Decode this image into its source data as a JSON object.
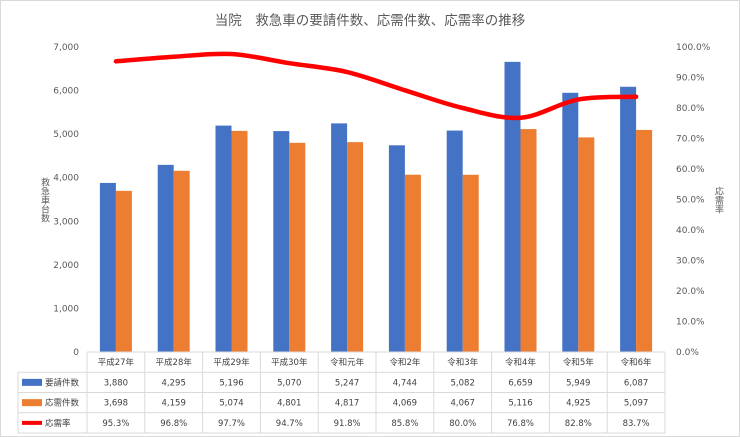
{
  "chart_data": {
    "type": "bar",
    "title": "当院　救急車の要請件数、応需件数、応需率の推移",
    "ylabel": "救急車台数",
    "y2label": "応需率",
    "categories": [
      "平成27年",
      "平成28年",
      "平成29年",
      "平成30年",
      "令和元年",
      "令和2年",
      "令和3年",
      "令和4年",
      "令和5年",
      "令和6年"
    ],
    "ylim": [
      0,
      7000
    ],
    "y2lim": [
      0,
      100
    ],
    "yticks": [
      "0",
      "1,000",
      "2,000",
      "3,000",
      "4,000",
      "5,000",
      "6,000",
      "7,000"
    ],
    "y2ticks": [
      "0.0%",
      "10.0%",
      "20.0%",
      "30.0%",
      "40.0%",
      "50.0%",
      "60.0%",
      "70.0%",
      "80.0%",
      "90.0%",
      "100.0%"
    ],
    "grid": false,
    "legend_placement": "data-table",
    "series": [
      {
        "name": "要請件数",
        "type": "bar",
        "color": "#4472C4",
        "values": [
          3880,
          4295,
          5196,
          5070,
          5247,
          4744,
          5082,
          6659,
          5949,
          6087
        ],
        "labels": [
          "3,880",
          "4,295",
          "5,196",
          "5,070",
          "5,247",
          "4,744",
          "5,082",
          "6,659",
          "5,949",
          "6,087"
        ]
      },
      {
        "name": "応需件数",
        "type": "bar",
        "color": "#ED7D31",
        "values": [
          3698,
          4159,
          5074,
          4801,
          4817,
          4069,
          4067,
          5116,
          4925,
          5097
        ],
        "labels": [
          "3,698",
          "4,159",
          "5,074",
          "4,801",
          "4,817",
          "4,069",
          "4,067",
          "5,116",
          "4,925",
          "5,097"
        ]
      },
      {
        "name": "応需率",
        "type": "line",
        "axis": "right",
        "color": "#FF0000",
        "values": [
          95.3,
          96.8,
          97.7,
          94.7,
          91.8,
          85.8,
          80.0,
          76.8,
          82.8,
          83.7
        ],
        "labels": [
          "95.3%",
          "96.8%",
          "97.7%",
          "94.7%",
          "91.8%",
          "85.8%",
          "80.0%",
          "76.8%",
          "82.8%",
          "83.7%"
        ]
      }
    ]
  }
}
